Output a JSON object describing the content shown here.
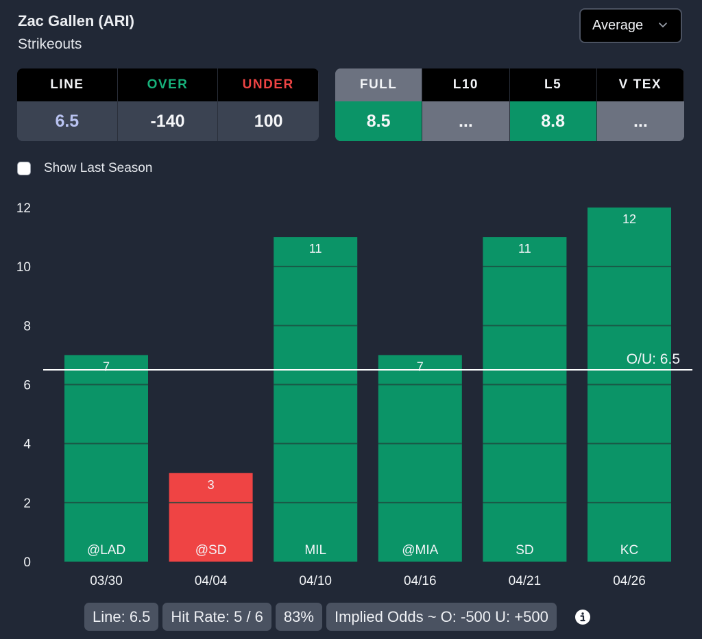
{
  "header": {
    "player": "Zac Gallen (ARI)",
    "stat": "Strikeouts"
  },
  "view_select": {
    "selected": "Average",
    "icon": "chevron-down-icon"
  },
  "odds": {
    "headers": [
      {
        "label": "LINE",
        "color": "#f3f4f6"
      },
      {
        "label": "OVER",
        "color": "#17b27b"
      },
      {
        "label": "UNDER",
        "color": "#ef4444"
      }
    ],
    "values": [
      {
        "label": "6.5",
        "color": "#b9c3f1"
      },
      {
        "label": "-140",
        "color": "#f5f6f8"
      },
      {
        "label": "100",
        "color": "#f5f6f8"
      }
    ]
  },
  "averages": {
    "headers": [
      "FULL",
      "L10",
      "L5",
      "V TEX"
    ],
    "active_index": 0,
    "values": [
      {
        "label": "8.5",
        "state": "green"
      },
      {
        "label": "...",
        "state": "gray"
      },
      {
        "label": "8.8",
        "state": "green"
      },
      {
        "label": "...",
        "state": "gray"
      }
    ]
  },
  "show_last_season": {
    "label": "Show Last Season",
    "checked": false
  },
  "colors": {
    "over": "#0b9467",
    "under": "#ef4444",
    "background": "#212836"
  },
  "chart_data": {
    "type": "bar",
    "title": "",
    "xlabel": "",
    "ylabel": "",
    "categories": [
      "03/30",
      "04/04",
      "04/10",
      "04/16",
      "04/21",
      "04/26"
    ],
    "opponents": [
      "@LAD",
      "@SD",
      "MIL",
      "@MIA",
      "SD",
      "KC"
    ],
    "values": [
      7,
      3,
      11,
      7,
      11,
      12
    ],
    "ylim": [
      0,
      12
    ],
    "yticks": [
      0,
      2,
      4,
      6,
      8,
      10,
      12
    ],
    "grid": true,
    "reference_line": {
      "value": 6.5,
      "label": "O/U: 6.5"
    }
  },
  "summary": {
    "line": "Line: 6.5",
    "hit_rate": "Hit Rate: 5 / 6",
    "percent": "83%",
    "implied_odds": "Implied Odds ~ O: -500 U: +500",
    "info_icon": "info-icon"
  }
}
